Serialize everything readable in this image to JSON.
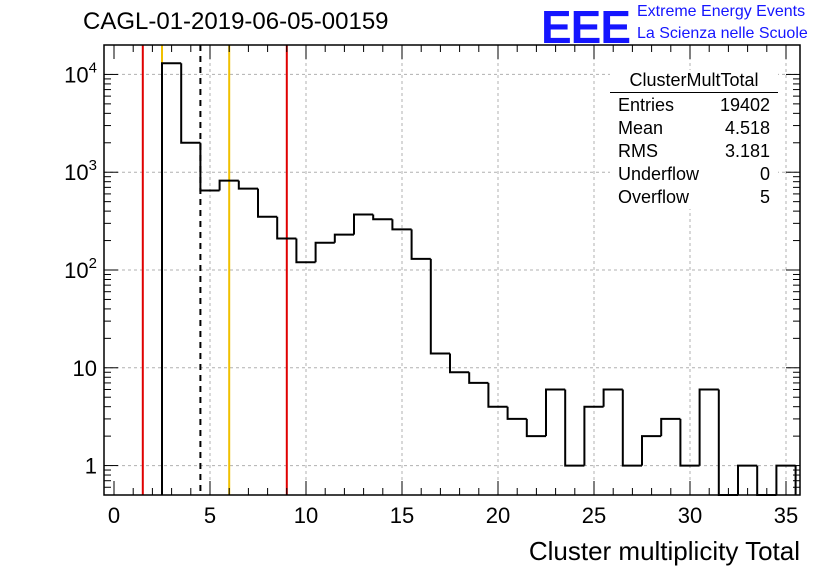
{
  "title": "CAGL-01-2019-06-05-00159",
  "logo": {
    "mark": "EEE",
    "line1": "Extreme Energy Events",
    "line2": "La Scienza nelle Scuole",
    "color": "#1515ff"
  },
  "stats_box": {
    "title": "ClusterMultTotal",
    "rows": [
      {
        "label": "Entries",
        "value": "19402"
      },
      {
        "label": "Mean",
        "value": "4.518"
      },
      {
        "label": "RMS",
        "value": "3.181"
      },
      {
        "label": "Underflow",
        "value": "0"
      },
      {
        "label": "Overflow",
        "value": "5"
      }
    ]
  },
  "chart_data": {
    "type": "histogram",
    "xlabel": "Cluster multiplicity Total",
    "ylabel": "",
    "xlim": [
      0,
      35
    ],
    "ylim": [
      0.5,
      20000
    ],
    "yscale": "log",
    "grid": true,
    "bin_width": 1,
    "x_ticks": [
      0,
      5,
      10,
      15,
      20,
      25,
      30,
      35
    ],
    "y_ticks": [
      {
        "value": 1,
        "base": "1",
        "exp": ""
      },
      {
        "value": 10,
        "base": "10",
        "exp": ""
      },
      {
        "value": 100,
        "base": "10",
        "exp": "2"
      },
      {
        "value": 1000,
        "base": "10",
        "exp": "3"
      },
      {
        "value": 10000,
        "base": "10",
        "exp": "4"
      }
    ],
    "bins": [
      {
        "lo": 2.5,
        "hi": 3.5,
        "count": 13000
      },
      {
        "lo": 3.5,
        "hi": 4.5,
        "count": 2000
      },
      {
        "lo": 4.5,
        "hi": 5.5,
        "count": 650
      },
      {
        "lo": 5.5,
        "hi": 6.5,
        "count": 820
      },
      {
        "lo": 6.5,
        "hi": 7.5,
        "count": 680
      },
      {
        "lo": 7.5,
        "hi": 8.5,
        "count": 350
      },
      {
        "lo": 8.5,
        "hi": 9.5,
        "count": 210
      },
      {
        "lo": 9.5,
        "hi": 10.5,
        "count": 120
      },
      {
        "lo": 10.5,
        "hi": 11.5,
        "count": 190
      },
      {
        "lo": 11.5,
        "hi": 12.5,
        "count": 230
      },
      {
        "lo": 12.5,
        "hi": 13.5,
        "count": 370
      },
      {
        "lo": 13.5,
        "hi": 14.5,
        "count": 330
      },
      {
        "lo": 14.5,
        "hi": 15.5,
        "count": 260
      },
      {
        "lo": 15.5,
        "hi": 16.5,
        "count": 130
      },
      {
        "lo": 16.5,
        "hi": 17.5,
        "count": 14
      },
      {
        "lo": 17.5,
        "hi": 18.5,
        "count": 9
      },
      {
        "lo": 18.5,
        "hi": 19.5,
        "count": 7
      },
      {
        "lo": 19.5,
        "hi": 20.5,
        "count": 4
      },
      {
        "lo": 20.5,
        "hi": 21.5,
        "count": 3
      },
      {
        "lo": 21.5,
        "hi": 22.5,
        "count": 2
      },
      {
        "lo": 22.5,
        "hi": 23.5,
        "count": 6
      },
      {
        "lo": 23.5,
        "hi": 24.5,
        "count": 1
      },
      {
        "lo": 24.5,
        "hi": 25.5,
        "count": 4
      },
      {
        "lo": 25.5,
        "hi": 26.5,
        "count": 6
      },
      {
        "lo": 26.5,
        "hi": 27.5,
        "count": 1
      },
      {
        "lo": 27.5,
        "hi": 28.5,
        "count": 2
      },
      {
        "lo": 28.5,
        "hi": 29.5,
        "count": 3
      },
      {
        "lo": 29.5,
        "hi": 30.5,
        "count": 1
      },
      {
        "lo": 30.5,
        "hi": 31.5,
        "count": 6
      },
      {
        "lo": 31.5,
        "hi": 32.5,
        "count": 0
      },
      {
        "lo": 32.5,
        "hi": 33.5,
        "count": 1
      },
      {
        "lo": 33.5,
        "hi": 34.5,
        "count": 0
      },
      {
        "lo": 34.5,
        "hi": 35.5,
        "count": 1
      }
    ],
    "vertical_lines": [
      {
        "x": 1.5,
        "color": "#e00000",
        "style": "solid"
      },
      {
        "x": 2.5,
        "color": "#f0c000",
        "style": "solid"
      },
      {
        "x": 4.5,
        "color": "#000000",
        "style": "dashed"
      },
      {
        "x": 6.0,
        "color": "#f0c000",
        "style": "solid"
      },
      {
        "x": 9.0,
        "color": "#e00000",
        "style": "solid"
      }
    ],
    "line_color": "#000000",
    "grid_color": "#b0b0b0"
  }
}
